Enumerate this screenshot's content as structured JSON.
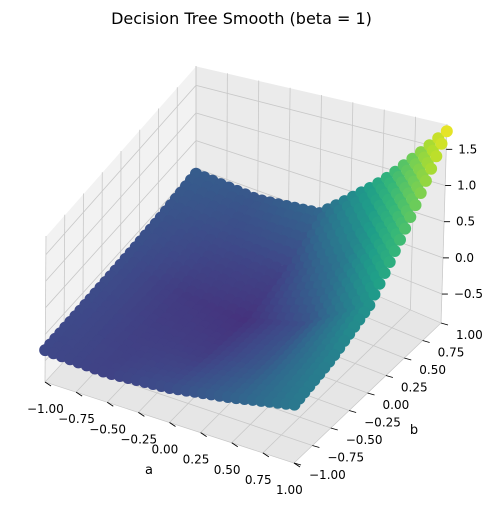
{
  "chart_data": {
    "type": "scatter",
    "projection": "3d",
    "title": "Decision Tree Smooth (beta = 1)",
    "xlabel": "a",
    "ylabel": "b",
    "zlabel": "",
    "xlim": [
      -1.0,
      1.0
    ],
    "ylim": [
      -1.0,
      1.0
    ],
    "zlim": [
      -0.9,
      1.85
    ],
    "xticks": [
      "−1.00",
      "−0.75",
      "−0.50",
      "−0.25",
      "0.00",
      "0.25",
      "0.50",
      "0.75",
      "1.00"
    ],
    "yticks": [
      "−1.00",
      "−0.75",
      "−0.50",
      "−0.25",
      "0.00",
      "0.25",
      "0.50",
      "0.75",
      "1.00"
    ],
    "zticks": [
      "−0.5",
      "0.0",
      "0.5",
      "1.0",
      "1.5"
    ],
    "grid": true,
    "colormap": "viridis",
    "surface_samples": {
      "a": [
        -1.0,
        -0.5,
        0.0,
        0.5,
        1.0
      ],
      "b": [
        -1.0,
        -0.5,
        0.0,
        0.5,
        1.0
      ],
      "z": [
        [
          -0.3,
          -0.28,
          -0.25,
          -0.2,
          -0.1
        ],
        [
          -0.35,
          -0.38,
          -0.42,
          -0.3,
          -0.15
        ],
        [
          -0.25,
          -0.4,
          -0.5,
          -0.35,
          0.0
        ],
        [
          -0.05,
          -0.15,
          -0.2,
          0.2,
          0.8
        ],
        [
          0.2,
          0.3,
          0.5,
          1.1,
          1.75
        ]
      ]
    }
  }
}
